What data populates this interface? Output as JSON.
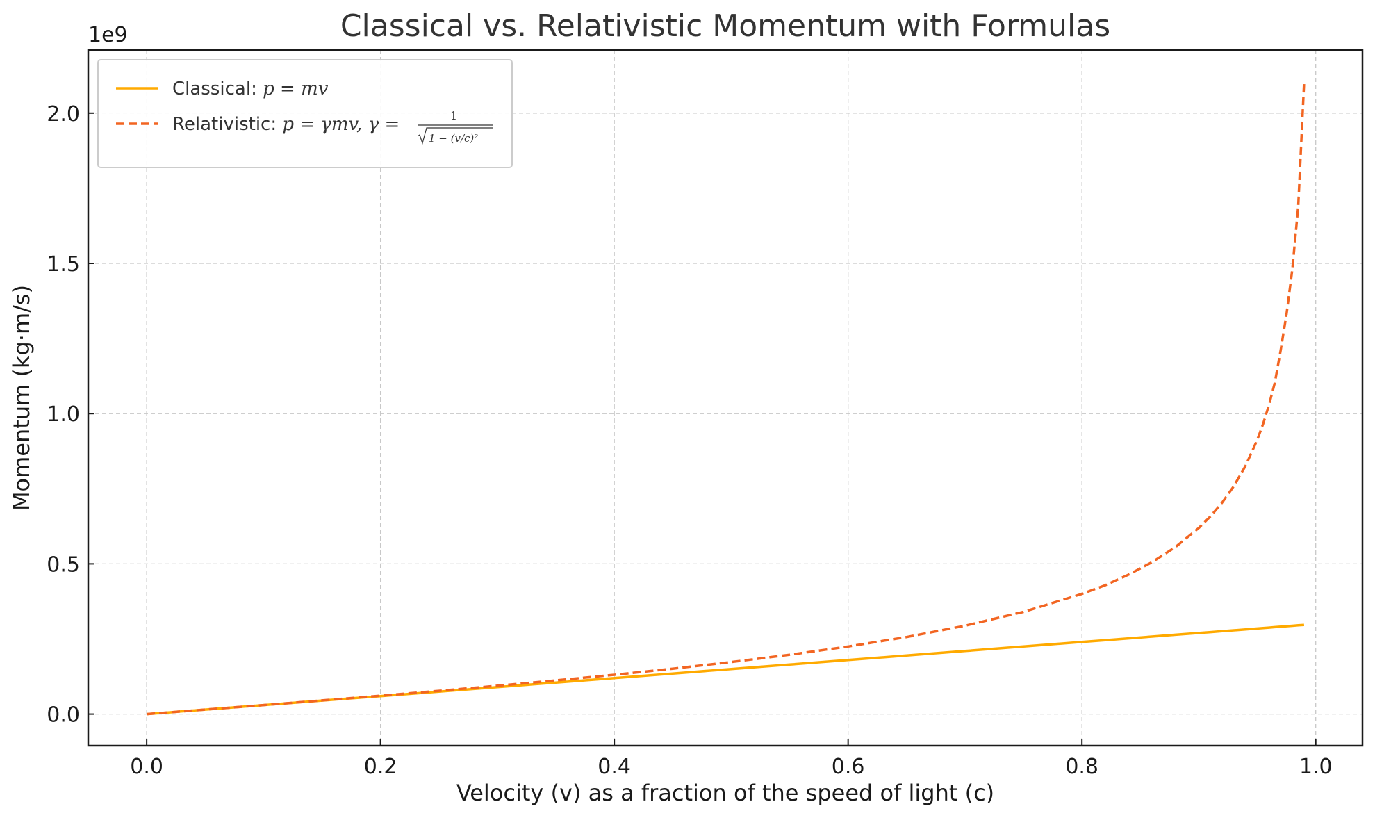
{
  "chart_data": {
    "type": "line",
    "title": "Classical vs. Relativistic Momentum with Formulas",
    "xlabel": "Velocity (v) as a fraction of the speed of light (c)",
    "ylabel": "Momentum (kg·m/s)",
    "y_offset_label": "1e9",
    "xlim": [
      -0.05,
      1.04
    ],
    "ylim": [
      -0.105,
      2.21
    ],
    "y_scale_factor": 1000000000.0,
    "grid": true,
    "legend_placement": "top-left",
    "x_ticks": [
      0.0,
      0.2,
      0.4,
      0.6,
      0.8,
      1.0
    ],
    "x_tick_labels": [
      "0.0",
      "0.2",
      "0.4",
      "0.6",
      "0.8",
      "1.0"
    ],
    "y_ticks": [
      0.0,
      0.5,
      1.0,
      1.5,
      2.0
    ],
    "y_tick_labels": [
      "0.0",
      "0.5",
      "1.0",
      "1.5",
      "2.0"
    ],
    "x": [
      0.0,
      0.05,
      0.1,
      0.15,
      0.2,
      0.25,
      0.3,
      0.35,
      0.4,
      0.45,
      0.5,
      0.55,
      0.6,
      0.65,
      0.7,
      0.75,
      0.8,
      0.82,
      0.84,
      0.86,
      0.88,
      0.9,
      0.91,
      0.92,
      0.93,
      0.94,
      0.95,
      0.955,
      0.96,
      0.965,
      0.97,
      0.975,
      0.98,
      0.985,
      0.99
    ],
    "series": [
      {
        "name": "Classical: p = mv",
        "name_prefix": "Classical: ",
        "formula": "p = mv",
        "color": "#ffaa00",
        "style": "solid",
        "values": [
          0.0,
          0.015,
          0.03,
          0.045,
          0.06,
          0.075,
          0.09,
          0.105,
          0.12,
          0.135,
          0.15,
          0.165,
          0.18,
          0.195,
          0.21,
          0.225,
          0.24,
          0.246,
          0.252,
          0.258,
          0.264,
          0.27,
          0.273,
          0.276,
          0.279,
          0.282,
          0.285,
          0.2865,
          0.288,
          0.2895,
          0.291,
          0.2925,
          0.294,
          0.2955,
          0.297
        ]
      },
      {
        "name": "Relativistic: p = γmv, γ = 1/√(1−(v/c)²)",
        "name_prefix": "Relativistic: ",
        "formula": "p = γmv, γ =",
        "gamma_numerator": "1",
        "gamma_denominator": "1 − (v/c)²",
        "color": "#f26522",
        "style": "dashed",
        "values": [
          0.0,
          0.01502,
          0.03015,
          0.04551,
          0.06124,
          0.07746,
          0.09435,
          0.11209,
          0.13093,
          0.15117,
          0.17321,
          0.19757,
          0.225,
          0.25658,
          0.29406,
          0.34017,
          0.4,
          0.42889,
          0.46441,
          0.50561,
          0.55587,
          0.61945,
          0.65842,
          0.70417,
          0.75891,
          0.82651,
          0.91296,
          0.96618,
          1.02863,
          1.10299,
          1.2104,
          1.33,
          1.48,
          1.69,
          2.1
        ]
      }
    ]
  }
}
